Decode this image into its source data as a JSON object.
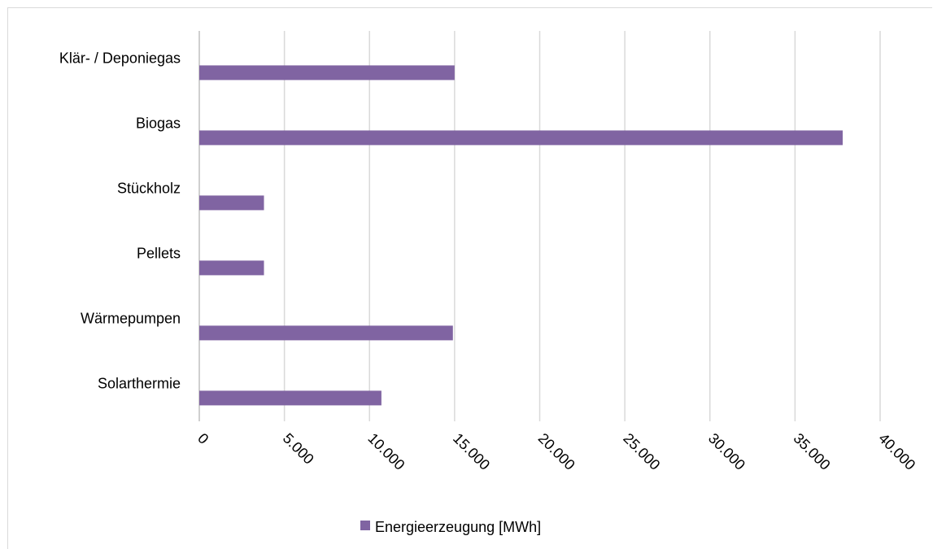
{
  "chart_data": {
    "type": "bar",
    "orientation": "horizontal",
    "categories": [
      "Klär- / Deponiegas",
      "Biogas",
      "Stückholz",
      "Pellets",
      "Wärmepumpen",
      "Solarthermie"
    ],
    "series": [
      {
        "name": "Energieerzeugung [MWh]",
        "values": [
          15000,
          37800,
          3800,
          3800,
          14900,
          10700
        ],
        "color": "#8064a2"
      }
    ],
    "xlim": [
      0,
      40000
    ],
    "x_ticks": [
      0,
      5000,
      10000,
      15000,
      20000,
      25000,
      30000,
      35000,
      40000
    ],
    "x_tick_labels": [
      "0",
      "5.000",
      "10.000",
      "15.000",
      "20.000",
      "25.000",
      "30.000",
      "35.000",
      "40.000"
    ],
    "grid": "vertical",
    "legend_position": "bottom",
    "gridline_color": "#d9d9d9",
    "axis_color": "#bfbfbf"
  }
}
